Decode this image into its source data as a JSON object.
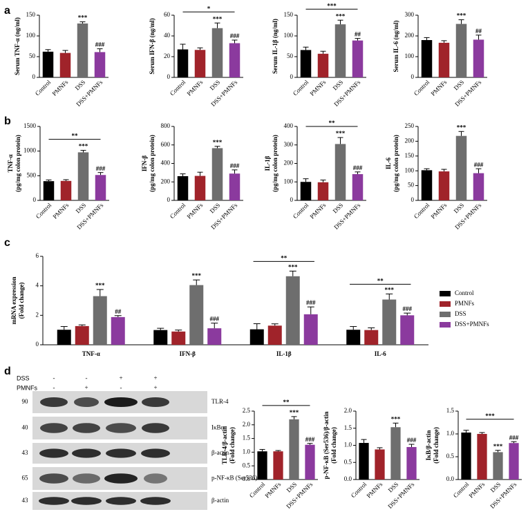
{
  "panel_labels": [
    "a",
    "b",
    "c",
    "d"
  ],
  "chart_data": [
    {
      "type": "bar",
      "ylabel": [
        "Serum TNF-α (ng/ml)"
      ],
      "categories": [
        "Control",
        "PMNFs",
        "DSS",
        "DSS+PMNFs"
      ],
      "values": [
        62,
        59,
        130,
        61
      ],
      "errors": [
        5,
        6,
        4,
        8
      ],
      "annotations": [
        null,
        null,
        "***",
        "###"
      ],
      "colors": [
        "#000000",
        "#a0232a",
        "#6e6e6e",
        "#8b3a9e"
      ],
      "ylim": [
        0,
        150
      ],
      "yticks": [
        0,
        50,
        100,
        150
      ]
    },
    {
      "type": "bar",
      "ylabel": [
        "Serum IFN-β (ng/ml)"
      ],
      "categories": [
        "Control",
        "PMNFs",
        "DSS",
        "DSS+PMNFs"
      ],
      "values": [
        27,
        26.5,
        47.5,
        33
      ],
      "errors": [
        5,
        2,
        5,
        3
      ],
      "annotations": [
        null,
        null,
        "***",
        "###"
      ],
      "bracket": "*",
      "colors": [
        "#000000",
        "#a0232a",
        "#6e6e6e",
        "#8b3a9e"
      ],
      "ylim": [
        0,
        60
      ],
      "yticks": [
        0,
        20,
        40,
        60
      ]
    },
    {
      "type": "bar",
      "ylabel": [
        "Serum IL-1β (ng/ml)"
      ],
      "categories": [
        "Control",
        "PMNFs",
        "DSS",
        "DSS+PMNFs"
      ],
      "values": [
        66,
        57,
        128,
        89
      ],
      "errors": [
        7,
        6,
        10,
        5
      ],
      "annotations": [
        null,
        null,
        "***",
        "##"
      ],
      "bracket": "***",
      "colors": [
        "#000000",
        "#a0232a",
        "#6e6e6e",
        "#8b3a9e"
      ],
      "ylim": [
        0,
        150
      ],
      "yticks": [
        0,
        50,
        100,
        150
      ]
    },
    {
      "type": "bar",
      "ylabel": [
        "Serum IL-6 (ng/ml)"
      ],
      "categories": [
        "Control",
        "PMNFs",
        "DSS",
        "DSS+PMNFs"
      ],
      "values": [
        180,
        167,
        258,
        182
      ],
      "errors": [
        12,
        10,
        20,
        22
      ],
      "annotations": [
        null,
        null,
        "***",
        "##"
      ],
      "colors": [
        "#000000",
        "#a0232a",
        "#6e6e6e",
        "#8b3a9e"
      ],
      "ylim": [
        0,
        300
      ],
      "yticks": [
        0,
        100,
        200,
        300
      ]
    },
    {
      "type": "bar",
      "ylabel": [
        "TNF-α",
        "(pg/mg colon protein)"
      ],
      "categories": [
        "Control",
        "PMNFs",
        "DSS",
        "DSS+PMNFs"
      ],
      "values": [
        390,
        395,
        975,
        515
      ],
      "errors": [
        25,
        25,
        40,
        50
      ],
      "annotations": [
        null,
        null,
        "***",
        "###"
      ],
      "bracket": "**",
      "colors": [
        "#000000",
        "#a0232a",
        "#6e6e6e",
        "#8b3a9e"
      ],
      "ylim": [
        0,
        1500
      ],
      "yticks": [
        0,
        500,
        1000,
        1500
      ]
    },
    {
      "type": "bar",
      "ylabel": [
        "IFN-β",
        "(pg/mg colon protein)"
      ],
      "categories": [
        "Control",
        "PMNFs",
        "DSS",
        "DSS+PMNFs"
      ],
      "values": [
        262,
        265,
        565,
        290
      ],
      "errors": [
        25,
        40,
        20,
        40
      ],
      "annotations": [
        null,
        null,
        "***",
        "###"
      ],
      "colors": [
        "#000000",
        "#a0232a",
        "#6e6e6e",
        "#8b3a9e"
      ],
      "ylim": [
        0,
        800
      ],
      "yticks": [
        0,
        200,
        400,
        600,
        800
      ]
    },
    {
      "type": "bar",
      "ylabel": [
        "IL-1β",
        "(pg/mg colon protein)"
      ],
      "categories": [
        "Control",
        "PMNFs",
        "DSS",
        "DSS+PMNFs"
      ],
      "values": [
        100,
        98,
        305,
        142
      ],
      "errors": [
        17,
        12,
        35,
        12
      ],
      "annotations": [
        null,
        null,
        "***",
        "###"
      ],
      "bracket": "**",
      "colors": [
        "#000000",
        "#a0232a",
        "#6e6e6e",
        "#8b3a9e"
      ],
      "ylim": [
        0,
        400
      ],
      "yticks": [
        0,
        100,
        200,
        300,
        400
      ]
    },
    {
      "type": "bar",
      "ylabel": [
        "IL-6",
        "(pg/mg colon protein)"
      ],
      "categories": [
        "Control",
        "PMNFs",
        "DSS",
        "DSS+PMNFs"
      ],
      "values": [
        102,
        98,
        218,
        92
      ],
      "errors": [
        5,
        7,
        15,
        15
      ],
      "annotations": [
        null,
        null,
        "***",
        "###"
      ],
      "colors": [
        "#000000",
        "#a0232a",
        "#6e6e6e",
        "#8b3a9e"
      ],
      "ylim": [
        0,
        250
      ],
      "yticks": [
        0,
        50,
        100,
        150,
        200,
        250
      ]
    },
    {
      "type": "grouped_bar",
      "ylabel": [
        "mRNA expression",
        "(Fold change)"
      ],
      "categories": [
        "TNF-α",
        "IFN-β",
        "IL-1β",
        "IL-6"
      ],
      "series": [
        {
          "name": "Control",
          "color": "#000000",
          "values": [
            1.02,
            1.0,
            1.05,
            1.02
          ],
          "errors": [
            0.22,
            0.12,
            0.38,
            0.22
          ],
          "annotations": [
            null,
            null,
            null,
            null
          ]
        },
        {
          "name": "PMNFs",
          "color": "#a0232a",
          "values": [
            1.27,
            0.9,
            1.3,
            1.0
          ],
          "errors": [
            0.08,
            0.1,
            0.12,
            0.15
          ],
          "annotations": [
            null,
            null,
            null,
            null
          ]
        },
        {
          "name": "DSS",
          "color": "#6e6e6e",
          "values": [
            3.3,
            4.05,
            4.65,
            3.07
          ],
          "errors": [
            0.45,
            0.35,
            0.35,
            0.38
          ],
          "annotations": [
            "***",
            "***",
            "***",
            "***"
          ]
        },
        {
          "name": "DSS+PMNFs",
          "color": "#8b3a9e",
          "values": [
            1.88,
            1.12,
            2.07,
            2.0
          ],
          "errors": [
            0.1,
            0.35,
            0.5,
            0.15
          ],
          "annotations": [
            "##",
            "###",
            "###",
            "###"
          ]
        }
      ],
      "brackets": [
        null,
        null,
        "**",
        "**"
      ],
      "legend": "right",
      "ylim": [
        0,
        6
      ],
      "yticks": [
        0,
        2,
        4,
        6
      ]
    },
    {
      "type": "bar",
      "ylabel": [
        "TLR-4/β-actin",
        "(Fold change)"
      ],
      "categories": [
        "Control",
        "PMNFs",
        "DSS",
        "DSS+PMNFs"
      ],
      "values": [
        1.03,
        1.03,
        2.2,
        1.27
      ],
      "errors": [
        0.07,
        0.03,
        0.1,
        0.05
      ],
      "annotations": [
        null,
        null,
        "***",
        "###"
      ],
      "bracket": "**",
      "colors": [
        "#000000",
        "#a0232a",
        "#6e6e6e",
        "#8b3a9e"
      ],
      "ylim": [
        0,
        2.5
      ],
      "yticks": [
        {
          "value": 0,
          "label": "0.0"
        },
        0.5,
        {
          "value": 1,
          "label": "1.0"
        },
        1.5,
        {
          "value": 2,
          "label": "2.0"
        },
        2.5
      ]
    },
    {
      "type": "bar",
      "ylabel": [
        "p-NF-κB (Ser536)/β-actin",
        "(Fold change)"
      ],
      "categories": [
        "Control",
        "PMNFs",
        "DSS",
        "DSS+PMNFs"
      ],
      "values": [
        1.07,
        0.88,
        1.53,
        0.95
      ],
      "errors": [
        0.1,
        0.05,
        0.12,
        0.08
      ],
      "annotations": [
        null,
        null,
        "***",
        "###"
      ],
      "colors": [
        "#000000",
        "#a0232a",
        "#6e6e6e",
        "#8b3a9e"
      ],
      "ylim": [
        0,
        2
      ],
      "yticks": [
        {
          "value": 0,
          "label": "0.0"
        },
        0.5,
        {
          "value": 1,
          "label": "1.0"
        },
        1.5,
        {
          "value": 2,
          "label": "2.0"
        }
      ]
    },
    {
      "type": "bar",
      "ylabel": [
        "IκB/β-actin",
        "(Fold change)"
      ],
      "categories": [
        "Control",
        "PMNFs",
        "DSS",
        "DSS+PMNFs"
      ],
      "values": [
        1.03,
        1.0,
        0.6,
        0.8
      ],
      "errors": [
        0.05,
        0.03,
        0.04,
        0.03
      ],
      "annotations": [
        null,
        null,
        "***",
        "###"
      ],
      "bracket": "***",
      "colors": [
        "#000000",
        "#a0232a",
        "#6e6e6e",
        "#8b3a9e"
      ],
      "ylim": [
        0,
        1.5
      ],
      "yticks": [
        {
          "value": 0,
          "label": "0.0"
        },
        0.5,
        {
          "value": 1,
          "label": "1.0"
        },
        1.5
      ]
    }
  ],
  "blot": {
    "conditions": [
      {
        "name": "DSS",
        "signs": [
          "-",
          "-",
          "+",
          "+"
        ]
      },
      {
        "name": "PMNFs",
        "signs": [
          "-",
          "+",
          "-",
          "+"
        ]
      }
    ],
    "rows": [
      {
        "label": "TLR-4",
        "marker": 90
      },
      {
        "label": "IκBα",
        "marker": 40
      },
      {
        "label": "β-actin",
        "marker": 43
      },
      {
        "label": "p-NF-κB (Ser536)",
        "marker": 65
      },
      {
        "label": "β-actin",
        "marker": 43
      }
    ]
  }
}
